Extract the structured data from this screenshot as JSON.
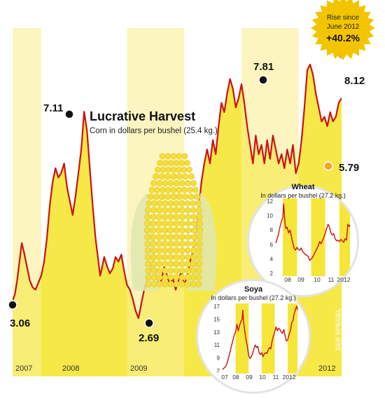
{
  "chart_data": [
    {
      "type": "area",
      "title": "Lucrative Harvest",
      "subtitle": "Corn in dollars per bushel (25.4 kg.)",
      "year_labels": [
        "2007",
        "2008",
        "2009",
        "2012"
      ],
      "x_range": [
        2007.0,
        2012.75
      ],
      "ylim": [
        2.3,
        8.6
      ],
      "x": [
        2007.0,
        2007.04,
        2007.08,
        2007.12,
        2007.16,
        2007.2,
        2007.25,
        2007.3,
        2007.35,
        2007.4,
        2007.45,
        2007.5,
        2007.55,
        2007.6,
        2007.65,
        2007.7,
        2007.75,
        2007.8,
        2007.85,
        2007.9,
        2007.95,
        2008.0,
        2008.05,
        2008.1,
        2008.15,
        2008.2,
        2008.25,
        2008.3,
        2008.35,
        2008.4,
        2008.45,
        2008.5,
        2008.53,
        2008.56,
        2008.6,
        2008.65,
        2008.7,
        2008.75,
        2008.8,
        2008.85,
        2008.9,
        2008.95,
        2009.0,
        2009.05,
        2009.1,
        2009.15,
        2009.2,
        2009.25,
        2009.3,
        2009.35,
        2009.4,
        2009.45,
        2009.5,
        2009.55,
        2009.6,
        2009.65,
        2009.7,
        2009.75,
        2009.8,
        2009.85,
        2009.9,
        2009.95,
        2010.0,
        2010.05,
        2010.1,
        2010.15,
        2010.2,
        2010.25,
        2010.3,
        2010.35,
        2010.4,
        2010.45,
        2010.5,
        2010.55,
        2010.6,
        2010.65,
        2010.7,
        2010.75,
        2010.8,
        2010.85,
        2010.9,
        2010.95,
        2011.0,
        2011.05,
        2011.1,
        2011.15,
        2011.2,
        2011.25,
        2011.3,
        2011.35,
        2011.4,
        2011.45,
        2011.5,
        2011.55,
        2011.6,
        2011.65,
        2011.7,
        2011.75,
        2011.8,
        2011.85,
        2011.9,
        2011.95,
        2012.0,
        2012.05,
        2012.1,
        2012.15,
        2012.2,
        2012.25,
        2012.3,
        2012.35,
        2012.4,
        2012.45,
        2012.5,
        2012.55,
        2012.6,
        2012.65,
        2012.7,
        2012.75
      ],
      "values": [
        3.06,
        3.2,
        3.5,
        3.9,
        4.3,
        4.1,
        3.8,
        3.5,
        3.35,
        3.3,
        3.45,
        3.6,
        3.9,
        4.4,
        5.1,
        5.6,
        5.9,
        5.7,
        5.8,
        6.0,
        5.5,
        5.2,
        4.9,
        5.3,
        5.8,
        6.3,
        7.11,
        6.7,
        5.9,
        5.1,
        4.4,
        3.9,
        3.6,
        3.75,
        4.0,
        3.8,
        3.65,
        3.75,
        4.0,
        3.9,
        4.05,
        3.7,
        3.4,
        3.3,
        3.1,
        2.85,
        2.69,
        3.0,
        3.3,
        3.5,
        3.7,
        3.9,
        3.7,
        3.4,
        3.5,
        3.8,
        3.6,
        3.4,
        3.55,
        3.3,
        3.5,
        3.7,
        3.4,
        3.6,
        3.9,
        4.1,
        4.5,
        5.0,
        5.6,
        6.0,
        6.3,
        6.0,
        6.5,
        6.2,
        6.8,
        7.3,
        7.1,
        7.5,
        7.81,
        7.6,
        7.2,
        7.4,
        7.7,
        7.3,
        6.8,
        6.4,
        6.0,
        6.6,
        6.2,
        6.4,
        6.0,
        6.5,
        6.1,
        6.6,
        6.3,
        6.0,
        6.2,
        5.9,
        6.3,
        6.0,
        6.4,
        5.79,
        6.0,
        6.5,
        7.2,
        8.0,
        8.12,
        7.9,
        7.5,
        7.2,
        6.9,
        7.0,
        6.8,
        7.1,
        6.9,
        7.0,
        7.3,
        7.4
      ],
      "callouts": [
        {
          "value": "3.06",
          "index": 0
        },
        {
          "value": "7.11",
          "index": 26
        },
        {
          "value": "2.69",
          "index": 46
        },
        {
          "value": "7.81",
          "index": 78
        },
        {
          "value": "5.79",
          "index": 101
        },
        {
          "value": "8.12",
          "index": 106
        }
      ],
      "starburst": {
        "line1": "Rise since",
        "line2": "June 2012",
        "value": "+40.2%"
      },
      "credit": "DER SPIEGEL",
      "colors": {
        "line": "#cc1111",
        "fill": "#f5e637",
        "stripe": "#fbf2a8",
        "starburst": "#f2c500"
      }
    },
    {
      "type": "line",
      "title": "Wheat",
      "subtitle": "In dollars per bushel (27.2 kg.)",
      "y_ticks": [
        "2",
        "4",
        "6",
        "8",
        "10",
        "12"
      ],
      "x_ticks": [
        "08",
        "09",
        "10",
        "11",
        "2012"
      ],
      "ylim": [
        2,
        12
      ],
      "x_range": [
        2007.5,
        2012.75
      ],
      "x": [
        2007.5,
        2007.6,
        2007.7,
        2007.8,
        2007.9,
        2008.0,
        2008.05,
        2008.1,
        2008.15,
        2008.2,
        2008.3,
        2008.4,
        2008.5,
        2008.6,
        2008.7,
        2008.8,
        2008.9,
        2009.0,
        2009.1,
        2009.2,
        2009.3,
        2009.4,
        2009.5,
        2009.6,
        2009.7,
        2009.8,
        2009.9,
        2010.0,
        2010.1,
        2010.2,
        2010.3,
        2010.4,
        2010.5,
        2010.6,
        2010.7,
        2010.8,
        2010.9,
        2011.0,
        2011.1,
        2011.2,
        2011.3,
        2011.4,
        2011.5,
        2011.6,
        2011.7,
        2011.8,
        2011.9,
        2012.0,
        2012.1,
        2012.2,
        2012.3,
        2012.4,
        2012.5,
        2012.6,
        2012.7,
        2012.75
      ],
      "values": [
        6.2,
        6.8,
        7.5,
        8.5,
        9.2,
        9.8,
        11.6,
        10.5,
        9.0,
        8.2,
        8.4,
        7.6,
        8.0,
        7.2,
        6.2,
        5.5,
        5.2,
        5.6,
        5.3,
        5.2,
        5.5,
        5.0,
        4.8,
        4.6,
        4.5,
        4.3,
        3.8,
        4.0,
        4.2,
        4.6,
        5.0,
        5.4,
        5.8,
        6.4,
        6.1,
        6.5,
        7.0,
        7.6,
        8.2,
        8.8,
        8.4,
        7.6,
        7.3,
        7.5,
        6.8,
        6.5,
        6.6,
        6.4,
        6.7,
        6.5,
        6.3,
        6.8,
        6.6,
        8.8,
        8.5,
        8.7
      ],
      "colors": {
        "line": "#cc1111",
        "band": "#f5e637"
      }
    },
    {
      "type": "line",
      "title": "Soya",
      "subtitle": "In dollars per bushel (27.2 kg.)",
      "y_ticks": [
        "7",
        "9",
        "11",
        "13",
        "15",
        "17"
      ],
      "x_ticks": [
        "07",
        "08",
        "09",
        "10",
        "11",
        "2012"
      ],
      "ylim": [
        7,
        17
      ],
      "x_range": [
        2007.0,
        2012.75
      ],
      "x": [
        2007.0,
        2007.1,
        2007.2,
        2007.3,
        2007.4,
        2007.5,
        2007.6,
        2007.7,
        2007.8,
        2007.9,
        2008.0,
        2008.1,
        2008.2,
        2008.3,
        2008.4,
        2008.5,
        2008.55,
        2008.6,
        2008.7,
        2008.8,
        2008.9,
        2009.0,
        2009.1,
        2009.2,
        2009.3,
        2009.4,
        2009.5,
        2009.6,
        2009.7,
        2009.8,
        2009.9,
        2010.0,
        2010.1,
        2010.2,
        2010.3,
        2010.4,
        2010.5,
        2010.6,
        2010.7,
        2010.8,
        2010.9,
        2011.0,
        2011.1,
        2011.2,
        2011.3,
        2011.4,
        2011.5,
        2011.6,
        2011.7,
        2011.8,
        2011.9,
        2012.0,
        2012.1,
        2012.2,
        2012.3,
        2012.4,
        2012.5,
        2012.6,
        2012.7,
        2012.75
      ],
      "values": [
        7.2,
        7.4,
        7.6,
        7.9,
        8.6,
        9.3,
        10.2,
        11.0,
        11.8,
        12.6,
        13.0,
        14.2,
        13.2,
        14.0,
        14.6,
        15.0,
        16.4,
        14.8,
        13.2,
        11.8,
        10.8,
        9.4,
        8.9,
        9.2,
        9.6,
        10.4,
        11.0,
        10.6,
        10.8,
        9.8,
        9.5,
        9.8,
        9.2,
        9.6,
        9.8,
        9.7,
        10.2,
        10.6,
        10.4,
        11.6,
        12.4,
        13.0,
        13.8,
        13.2,
        13.6,
        13.4,
        13.0,
        12.8,
        13.4,
        12.4,
        11.6,
        11.8,
        12.6,
        13.2,
        14.4,
        14.8,
        15.8,
        16.6,
        17.0,
        16.4
      ],
      "colors": {
        "line": "#cc1111",
        "band": "#f5e637"
      }
    }
  ]
}
